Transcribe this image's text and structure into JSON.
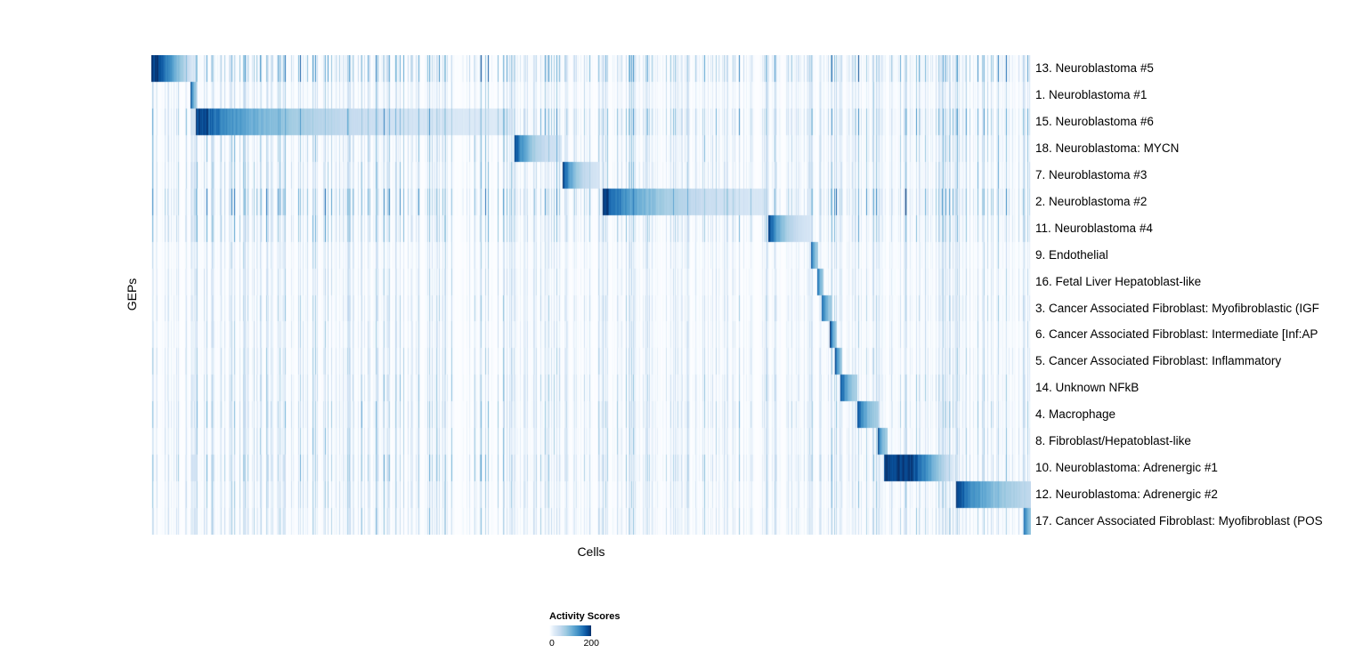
{
  "chart_data": {
    "type": "heatmap",
    "title": "",
    "xlabel": "Cells",
    "ylabel": "GEPs",
    "x_axis": {
      "label": "Cells",
      "tick_labels_shown": false
    },
    "y_axis": {
      "label": "GEPs",
      "tick_labels_shown": false
    },
    "legend": {
      "title": "Activity Scores",
      "min_label": "0",
      "max_label": "200",
      "position": "bottom-left",
      "orientation": "horizontal"
    },
    "colormap": {
      "name": "Blues",
      "stops": [
        [
          0.0,
          "#ffffff"
        ],
        [
          0.03,
          "#f7fbff"
        ],
        [
          0.12,
          "#deebf7"
        ],
        [
          0.25,
          "#c6dbef"
        ],
        [
          0.4,
          "#9ecae1"
        ],
        [
          0.55,
          "#6baed6"
        ],
        [
          0.68,
          "#4292c6"
        ],
        [
          0.8,
          "#2171b5"
        ],
        [
          0.9,
          "#08519c"
        ],
        [
          1.0,
          "#08306b"
        ]
      ]
    },
    "value_range": [
      0,
      200
    ],
    "rows": [
      {
        "label": "13. Neuroblastoma #5",
        "start": 0.0,
        "end": 0.048,
        "wide": true,
        "fade": 3.2,
        "plateau": 0.15,
        "noise": 1.4
      },
      {
        "label": "1. Neuroblastoma #1",
        "start": 0.044,
        "end": 0.051,
        "wide": false,
        "fade": 2.0,
        "plateau": null,
        "noise": 0.7
      },
      {
        "label": "15. Neuroblastoma #6",
        "start": 0.05,
        "end": 0.41,
        "wide": true,
        "fade": 3.6,
        "plateau": null,
        "noise": 1.3
      },
      {
        "label": "18. Neuroblastoma: MYCN",
        "start": 0.413,
        "end": 0.467,
        "wide": true,
        "fade": 2.8,
        "plateau": null,
        "noise": 0.9
      },
      {
        "label": "7. Neuroblastoma #3",
        "start": 0.468,
        "end": 0.51,
        "wide": true,
        "fade": 2.8,
        "plateau": null,
        "noise": 0.9
      },
      {
        "label": "2. Neuroblastoma #2",
        "start": 0.513,
        "end": 0.701,
        "wide": true,
        "fade": 3.0,
        "plateau": null,
        "noise": 1.5
      },
      {
        "label": "11. Neuroblastoma #4",
        "start": 0.702,
        "end": 0.748,
        "wide": true,
        "fade": 2.6,
        "plateau": null,
        "noise": 1.0
      },
      {
        "label": "9. Endothelial",
        "start": 0.75,
        "end": 0.758,
        "wide": false,
        "fade": 2.0,
        "plateau": null,
        "noise": 0.6
      },
      {
        "label": "16. Fetal Liver Hepatoblast-like",
        "start": 0.757,
        "end": 0.764,
        "wide": false,
        "fade": 2.0,
        "plateau": null,
        "noise": 0.6
      },
      {
        "label": "3. Cancer Associated Fibroblast: Myofibroblastic (IGF",
        "start": 0.762,
        "end": 0.774,
        "wide": false,
        "fade": 2.0,
        "plateau": null,
        "noise": 0.7
      },
      {
        "label": "6. Cancer Associated Fibroblast: Intermediate [Inf:AP",
        "start": 0.772,
        "end": 0.78,
        "wide": false,
        "fade": 2.0,
        "plateau": null,
        "noise": 0.6
      },
      {
        "label": "5. Cancer Associated Fibroblast: Inflammatory",
        "start": 0.778,
        "end": 0.786,
        "wide": false,
        "fade": 2.0,
        "plateau": null,
        "noise": 0.7
      },
      {
        "label": "14. Unknown NFkB",
        "start": 0.784,
        "end": 0.803,
        "wide": false,
        "fade": 2.2,
        "plateau": null,
        "noise": 0.8
      },
      {
        "label": "4. Macrophage",
        "start": 0.803,
        "end": 0.827,
        "wide": false,
        "fade": 2.2,
        "plateau": null,
        "noise": 0.9
      },
      {
        "label": "8. Fibroblast/Hepatoblast-like",
        "start": 0.826,
        "end": 0.837,
        "wide": false,
        "fade": 2.0,
        "plateau": null,
        "noise": 0.8
      },
      {
        "label": "10. Neuroblastoma: Adrenergic #1",
        "start": 0.833,
        "end": 0.913,
        "wide": true,
        "fade": 2.2,
        "plateau": 0.4,
        "noise": 1.0
      },
      {
        "label": "12. Neuroblastoma: Adrenergic #2",
        "start": 0.915,
        "end": 1.0,
        "wide": true,
        "fade": 1.6,
        "plateau": null,
        "noise": 0.8
      },
      {
        "label": "17. Cancer Associated Fibroblast: Myofibroblast (POS",
        "start": 0.992,
        "end": 1.0,
        "wide": false,
        "fade": 1.5,
        "plateau": null,
        "noise": 0.8
      }
    ],
    "streaks": [
      {
        "c": 0.046,
        "v": 0.25
      },
      {
        "c": 0.5135,
        "v": 0.32
      },
      {
        "c": 0.7,
        "v": 0.34
      },
      {
        "c": 0.749,
        "v": 0.3
      },
      {
        "c": 0.761,
        "v": 0.26
      },
      {
        "c": 0.828,
        "v": 0.26
      },
      {
        "c": 0.915,
        "v": 0.24
      },
      {
        "c": 0.993,
        "v": 0.3
      }
    ]
  }
}
